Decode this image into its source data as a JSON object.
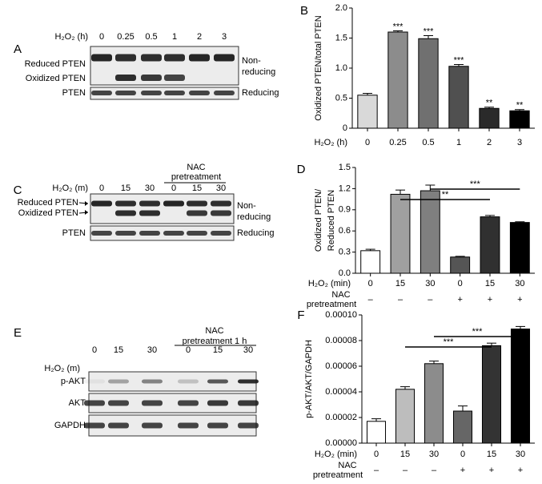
{
  "blots": {
    "A": {
      "label": "A",
      "treatment": "H₂O₂ (h)",
      "lanes": [
        "0",
        "0.25",
        "0.5",
        "1",
        "2",
        "3"
      ],
      "rows": [
        "Reduced PTEN",
        "Oxidized PTEN",
        "PTEN"
      ],
      "conditions": [
        "Non-",
        "reducing",
        "Reducing"
      ]
    },
    "C": {
      "label": "C",
      "treatment": "H₂O₂ (m)",
      "lanes": [
        "0",
        "15",
        "30",
        "0",
        "15",
        "30"
      ],
      "group": [
        "NAC",
        "pretreatment"
      ],
      "rows": [
        "Reduced PTEN",
        "Oxidized PTEN",
        "PTEN"
      ],
      "conditions": [
        "Non-",
        "reducing",
        "Reducing"
      ]
    },
    "E": {
      "label": "E",
      "treatment": "H₂O₂ (m)",
      "lanes": [
        "0",
        "15",
        "30",
        "0",
        "15",
        "30"
      ],
      "group": [
        "NAC",
        "pretreatment 1 h"
      ],
      "rows": [
        "p-AKT",
        "AKT",
        "GAPDH"
      ]
    }
  },
  "chart_data": [
    {
      "type": "bar",
      "panel": "B",
      "ylabel": [
        "Oxidized PTEN/total PTEN"
      ],
      "xlabel": "H₂O₂ (h)",
      "categories": [
        "0",
        "0.25",
        "0.5",
        "1",
        "2",
        "3"
      ],
      "values": [
        0.55,
        1.6,
        1.49,
        1.03,
        0.33,
        0.29
      ],
      "errors": [
        0.03,
        0.02,
        0.05,
        0.03,
        0.02,
        0.02
      ],
      "colors": [
        "#d9d9d9",
        "#8c8c8c",
        "#707070",
        "#505050",
        "#2a2a2a",
        "#000000"
      ],
      "significance": [
        null,
        "***",
        "***",
        "***",
        "**",
        "**"
      ],
      "ylim": [
        0,
        2
      ],
      "yticks": [
        0,
        0.5,
        {
          "value": 1,
          "label": "1.0"
        },
        1.5,
        {
          "value": 2,
          "label": "2.0"
        }
      ]
    },
    {
      "type": "bar",
      "panel": "D",
      "ylabel": [
        "Oxidized PTEN/",
        "Reduced PTEN"
      ],
      "xlabel": "H₂O₂ (min)",
      "categories": [
        "0",
        "15",
        "30",
        "0",
        "15",
        "30"
      ],
      "row2_label": [
        "NAC",
        "pretreatment"
      ],
      "row2": [
        "–",
        "–",
        "–",
        "+",
        "+",
        "+"
      ],
      "values": [
        0.32,
        1.12,
        1.17,
        0.23,
        0.8,
        0.72
      ],
      "errors": [
        0.02,
        0.06,
        0.08,
        0.01,
        0.02,
        0.01
      ],
      "colors": [
        "#ffffff",
        "#a0a0a0",
        "#7f7f7f",
        "#555555",
        "#303030",
        "#000000"
      ],
      "brackets": [
        {
          "between": [
            1,
            4
          ],
          "text": "**"
        },
        {
          "between": [
            2,
            5
          ],
          "text": "***"
        }
      ],
      "ylim": [
        0,
        1.5
      ],
      "yticks": [
        {
          "value": 0,
          "label": "0.0"
        },
        0.3,
        0.6,
        0.9,
        1.2,
        1.5
      ]
    },
    {
      "type": "bar",
      "panel": "F",
      "ylabel": [
        "p-AKT/AKT/GAPDH"
      ],
      "xlabel": "H₂O₂ (min)",
      "categories": [
        "0",
        "15",
        "30",
        "0",
        "15",
        "30"
      ],
      "row2_label": [
        "NAC",
        "pretreatment"
      ],
      "row2": [
        "–",
        "–",
        "–",
        "+",
        "+",
        "+"
      ],
      "values": [
        1.7e-05,
        4.2e-05,
        6.2e-05,
        2.5e-05,
        7.6e-05,
        8.9e-05
      ],
      "errors": [
        2e-06,
        2e-06,
        2e-06,
        4e-06,
        2e-06,
        2e-06
      ],
      "colors": [
        "#ffffff",
        "#bdbdbd",
        "#8c8c8c",
        "#666666",
        "#333333",
        "#000000"
      ],
      "brackets": [
        {
          "between": [
            1,
            4
          ],
          "text": "***"
        },
        {
          "between": [
            2,
            5
          ],
          "text": "***"
        }
      ],
      "ylim": [
        0,
        0.0001
      ],
      "yticks": [
        {
          "value": 0,
          "label": "0.00000"
        },
        {
          "value": 2e-05,
          "label": "0.00002"
        },
        {
          "value": 4e-05,
          "label": "0.00004"
        },
        {
          "value": 6e-05,
          "label": "0.00006"
        },
        {
          "value": 8e-05,
          "label": "0.00008"
        },
        {
          "value": 0.0001,
          "label": "0.00010"
        }
      ]
    }
  ]
}
